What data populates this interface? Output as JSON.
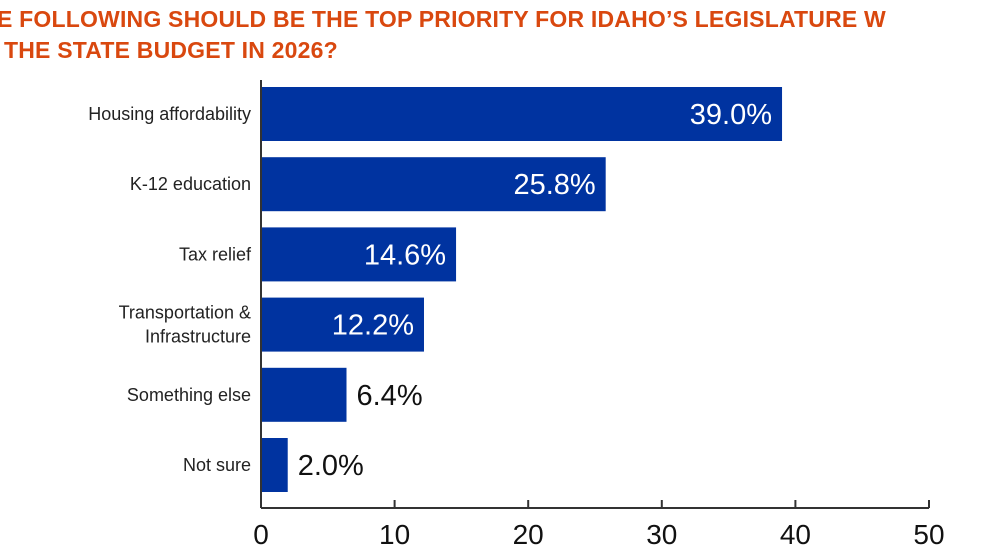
{
  "chart_data": {
    "type": "bar",
    "orientation": "horizontal",
    "title_lines": [
      "E FOLLOWING SHOULD BE THE TOP PRIORITY FOR IDAHO’S LEGISLATURE W",
      "THE STATE BUDGET IN 2026?"
    ],
    "categories": [
      [
        "Housing affordability"
      ],
      [
        "K-12 education"
      ],
      [
        "Tax relief"
      ],
      [
        "Transportation &",
        "Infrastructure"
      ],
      [
        "Something else"
      ],
      [
        "Not sure"
      ]
    ],
    "values": [
      39.0,
      25.8,
      14.6,
      12.2,
      6.4,
      2.0
    ],
    "data_labels": [
      "39.0%",
      "25.8%",
      "14.6%",
      "12.2%",
      "6.4%",
      "2.0%"
    ],
    "xlim": [
      0,
      50
    ],
    "xticks": [
      0,
      10,
      20,
      30,
      40,
      50
    ],
    "grid": false,
    "colors": {
      "bar": "#0033a0",
      "title": "#d9480f",
      "label_inside": "#ffffff",
      "label_outside": "#111111"
    }
  }
}
